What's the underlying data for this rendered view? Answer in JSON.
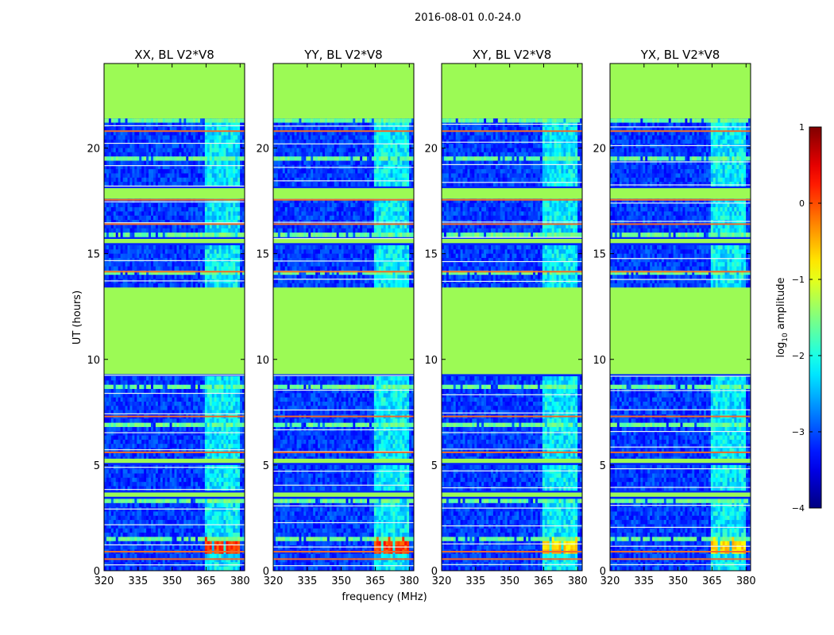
{
  "figure": {
    "suptitle": "2016-08-01 0.0-24.0"
  },
  "chart_data": {
    "type": "heatmap",
    "panel_titles": [
      "XX, BL V2*V8",
      "YY, BL V2*V8",
      "XY, BL V2*V8",
      "YX, BL V2*V8"
    ],
    "xlabel": "frequency (MHz)",
    "ylabel": "UT (hours)",
    "xlim": [
      320,
      382
    ],
    "ylim": [
      0,
      24
    ],
    "xticks": [
      320,
      335,
      350,
      365,
      380
    ],
    "yticks": [
      0,
      5,
      10,
      15,
      20
    ],
    "colorbar": {
      "label_prefix": "log",
      "label_sub": "10",
      "label_suffix": " amplitude",
      "range": [
        -4,
        1
      ],
      "ticks": [
        1,
        0,
        -1,
        -2,
        -3,
        -4
      ],
      "tick_labels": [
        "1",
        "0",
        "−1",
        "−2",
        "−3",
        "−4"
      ],
      "colormap": "jet"
    },
    "flagged_value": -0.9,
    "flagged_color": "#9cfa55",
    "flagged_intervals_hours": [
      [
        21.4,
        24.0
      ],
      [
        17.6,
        18.1
      ],
      [
        9.3,
        13.4
      ],
      [
        15.5,
        15.7
      ],
      [
        5.1,
        5.3
      ],
      [
        3.5,
        3.7
      ]
    ],
    "red_line_hours": [
      20.8,
      17.55,
      16.4,
      14.15,
      0.9,
      0.55,
      5.6,
      7.3
    ],
    "rfi_band_mhz": [
      364,
      380
    ],
    "rfi_band_blocks_mhz": [
      [
        364,
        368
      ],
      [
        369,
        373
      ],
      [
        374,
        378
      ],
      [
        378,
        381
      ]
    ],
    "strong_rfi_hours": [
      0.8,
      1.6
    ]
  }
}
